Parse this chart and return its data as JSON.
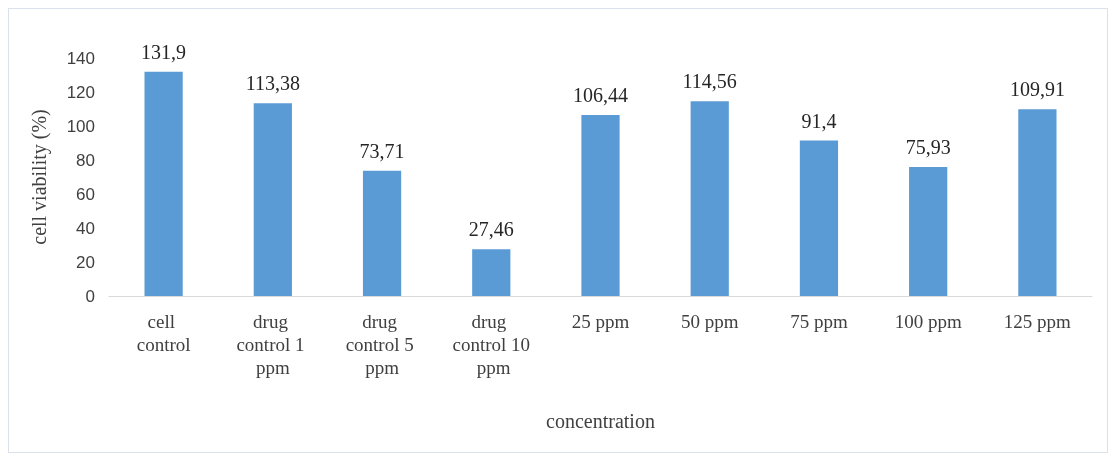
{
  "chart_data": {
    "type": "bar",
    "xlabel": "concentration",
    "ylabel": "cell viability (%)",
    "categories": [
      "cell control",
      "drug control 1 ppm",
      "drug control 5 ppm",
      "drug control 10 ppm",
      "25 ppm",
      "50 ppm",
      "75 ppm",
      "100 ppm",
      "125 ppm"
    ],
    "values": [
      131.9,
      113.38,
      73.71,
      27.46,
      106.44,
      114.56,
      91.4,
      75.93,
      109.91
    ],
    "value_labels": [
      "131,9",
      "113,38",
      "73,71",
      "27,46",
      "106,44",
      "114,56",
      "91,4",
      "75,93",
      "109,91"
    ],
    "color": "#5b9bd5",
    "ylim": [
      0,
      140
    ],
    "yticks": [
      0,
      20,
      40,
      60,
      80,
      100,
      120,
      140
    ],
    "grid": false
  }
}
